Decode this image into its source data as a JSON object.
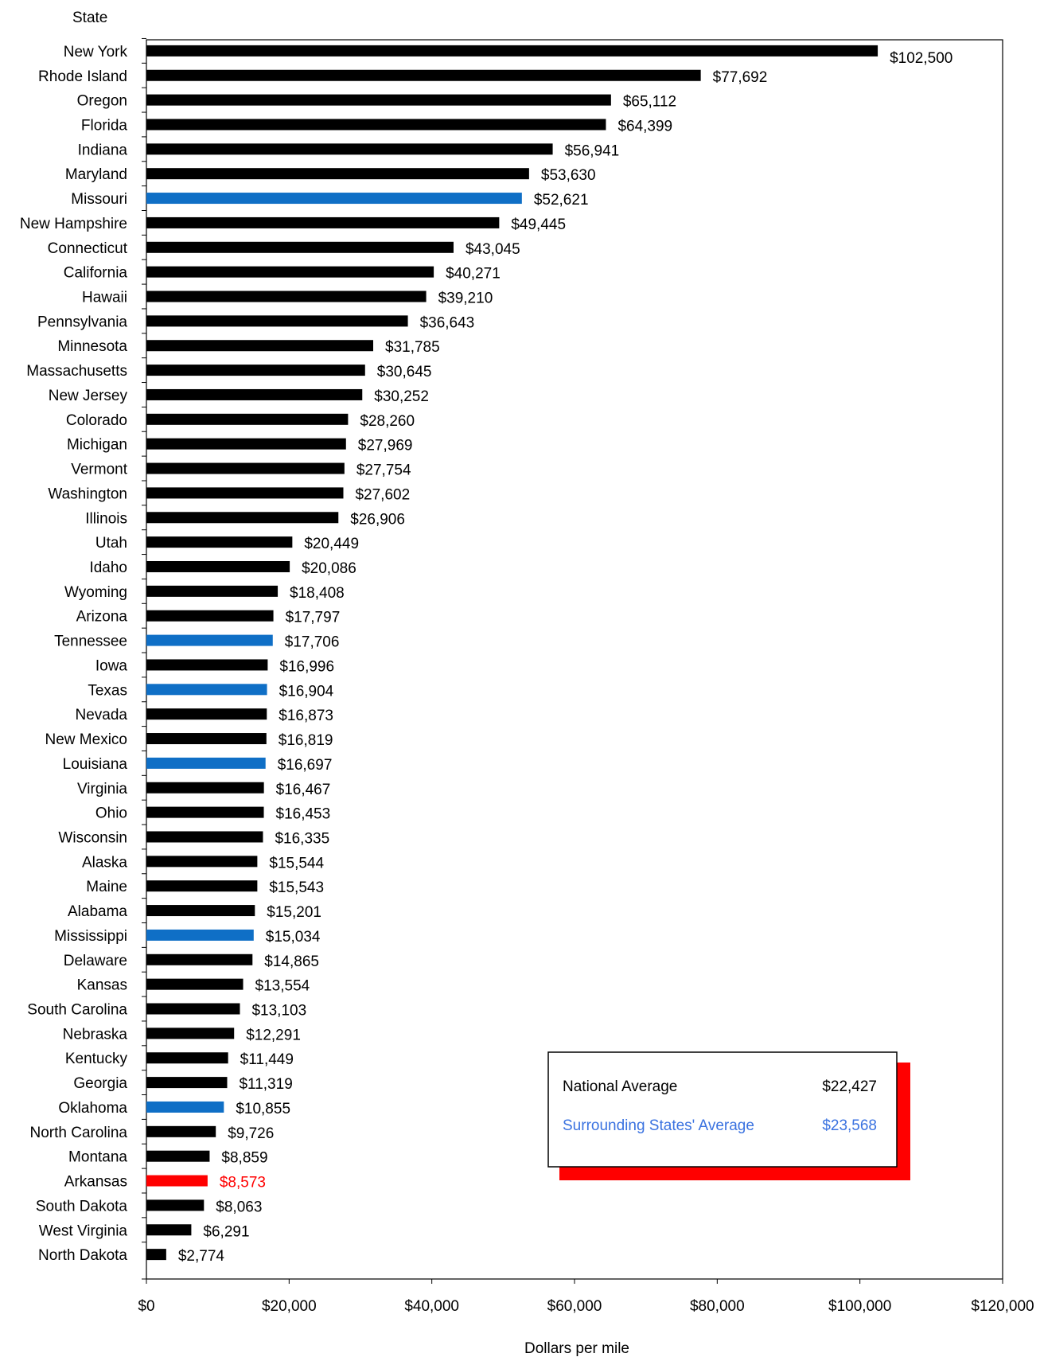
{
  "chart_data": {
    "type": "bar",
    "orientation": "horizontal",
    "title": "",
    "ylabel": "State",
    "xlabel": "Dollars per mile",
    "xlim": [
      0,
      120000
    ],
    "x_ticks": [
      0,
      20000,
      40000,
      60000,
      80000,
      100000,
      120000
    ],
    "x_tick_labels": [
      "$0",
      "$20,000",
      "$40,000",
      "$60,000",
      "$80,000",
      "$100,000",
      "$120,000"
    ],
    "grid": false,
    "categories": [
      "New York",
      "Rhode Island",
      "Oregon",
      "Florida",
      "Indiana",
      "Maryland",
      "Missouri",
      "New Hampshire",
      "Connecticut",
      "California",
      "Hawaii",
      "Pennsylvania",
      "Minnesota",
      "Massachusetts",
      "New Jersey",
      "Colorado",
      "Michigan",
      "Vermont",
      "Washington",
      "Illinois",
      "Utah",
      "Idaho",
      "Wyoming",
      "Arizona",
      "Tennessee",
      "Iowa",
      "Texas",
      "Nevada",
      "New Mexico",
      "Louisiana",
      "Virginia",
      "Ohio",
      "Wisconsin",
      "Alaska",
      "Maine",
      "Alabama",
      "Mississippi",
      "Delaware",
      "Kansas",
      "South Carolina",
      "Nebraska",
      "Kentucky",
      "Georgia",
      "Oklahoma",
      "North Carolina",
      "Montana",
      "Arkansas",
      "South Dakota",
      "West Virginia",
      "North Dakota"
    ],
    "values": [
      102500,
      77692,
      65112,
      64399,
      56941,
      53630,
      52621,
      49445,
      43045,
      40271,
      39210,
      36643,
      31785,
      30645,
      30252,
      28260,
      27969,
      27754,
      27602,
      26906,
      20449,
      20086,
      18408,
      17797,
      17706,
      16996,
      16904,
      16873,
      16819,
      16697,
      16467,
      16453,
      16335,
      15544,
      15543,
      15201,
      15034,
      14865,
      13554,
      13103,
      12291,
      11449,
      11319,
      10855,
      9726,
      8859,
      8573,
      8063,
      6291,
      2774
    ],
    "value_labels": [
      "$102,500",
      "$77,692",
      "$65,112",
      "$64,399",
      "$56,941",
      "$53,630",
      "$52,621",
      "$49,445",
      "$43,045",
      "$40,271",
      "$39,210",
      "$36,643",
      "$31,785",
      "$30,645",
      "$30,252",
      "$28,260",
      "$27,969",
      "$27,754",
      "$27,602",
      "$26,906",
      "$20,449",
      "$20,086",
      "$18,408",
      "$17,797",
      "$17,706",
      "$16,996",
      "$16,904",
      "$16,873",
      "$16,819",
      "$16,697",
      "$16,467",
      "$16,453",
      "$16,335",
      "$15,544",
      "$15,543",
      "$15,201",
      "$15,034",
      "$14,865",
      "$13,554",
      "$13,103",
      "$12,291",
      "$11,449",
      "$11,319",
      "$10,855",
      "$9,726",
      "$8,859",
      "$8,573",
      "$8,063",
      "$6,291",
      "$2,774"
    ],
    "highlight_blue": [
      "Missouri",
      "Tennessee",
      "Texas",
      "Louisiana",
      "Mississippi",
      "Oklahoma"
    ],
    "highlight_red": [
      "Arkansas"
    ],
    "colors": {
      "default": "#000000",
      "surrounding": "#0f6fc6",
      "arkansas": "#ff0000",
      "legend_blue": "#3a72e0"
    },
    "legend": {
      "placement": "bottom-right",
      "entries": [
        {
          "label": "National Average",
          "value": "$22,427",
          "color": "#000000"
        },
        {
          "label": "Surrounding States' Average",
          "value": "$23,568",
          "color": "#3a72e0"
        }
      ]
    }
  }
}
